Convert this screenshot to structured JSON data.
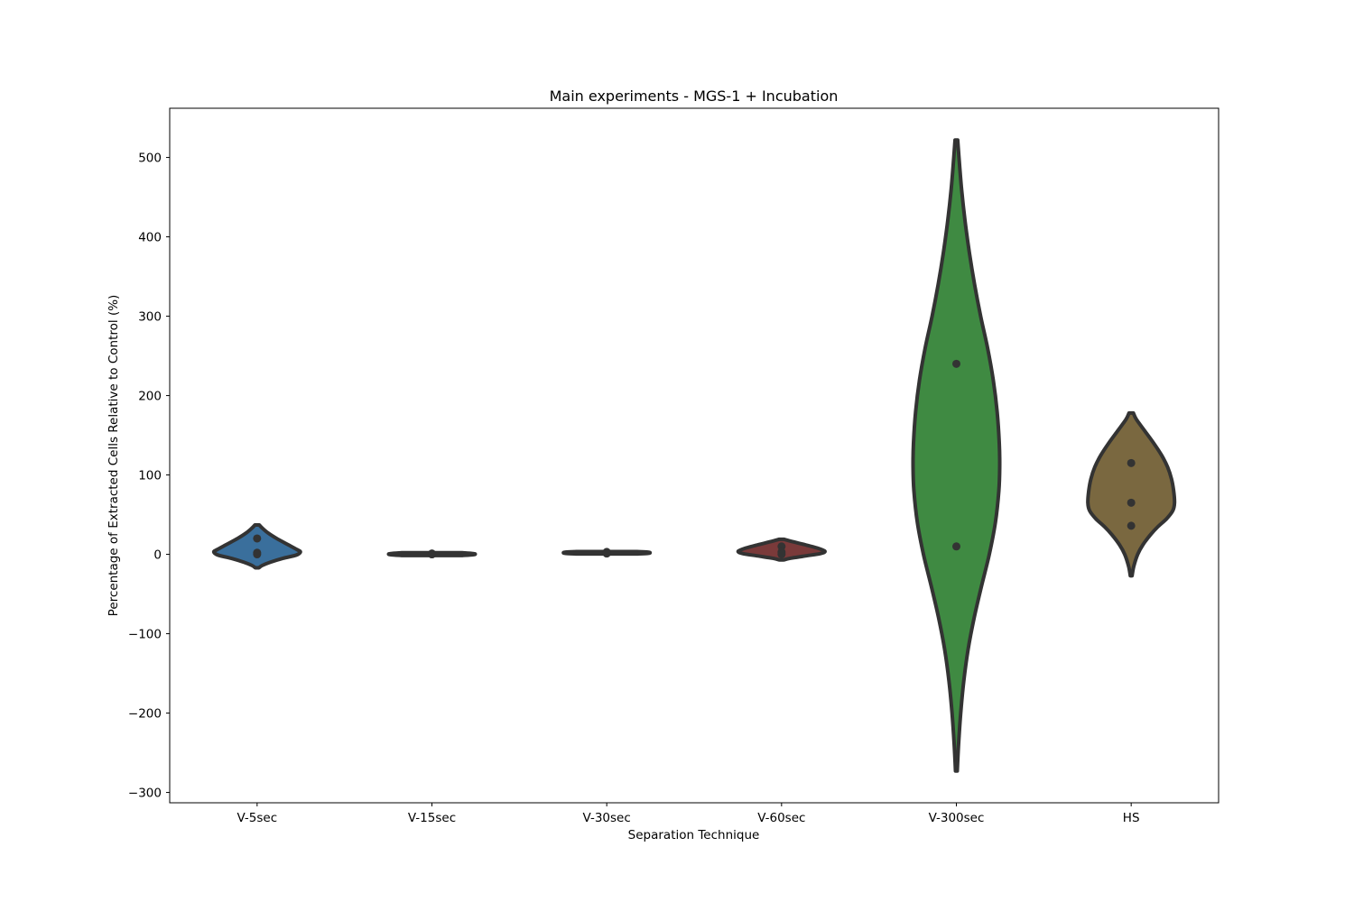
{
  "chart_data": {
    "type": "violin",
    "title": "Main experiments - MGS-1 + Incubation",
    "xlabel": "Separation Technique",
    "ylabel": "Percentage of Extracted Cells Relative to Control (%)",
    "ylim": [
      -313,
      562
    ],
    "yticks": [
      -300,
      -200,
      -100,
      0,
      100,
      200,
      300,
      400,
      500
    ],
    "ytick_labels": [
      "−300",
      "−200",
      "−100",
      "0",
      "100",
      "200",
      "300",
      "400",
      "500"
    ],
    "grid": false,
    "legend": "none",
    "categories": [
      "V-5sec",
      "V-15sec",
      "V-30sec",
      "V-60sec",
      "V-300sec",
      "HS"
    ],
    "series": [
      {
        "category": "V-5sec",
        "color": "#3a6f9c",
        "points": [
          20,
          2,
          0
        ],
        "violin_range": [
          -17,
          37
        ],
        "density_profile": [
          [
            37,
            0.05
          ],
          [
            33,
            0.12
          ],
          [
            27,
            0.25
          ],
          [
            20,
            0.45
          ],
          [
            12,
            0.72
          ],
          [
            6,
            0.92
          ],
          [
            3,
            1.0
          ],
          [
            -1,
            0.9
          ],
          [
            -5,
            0.6
          ],
          [
            -10,
            0.3
          ],
          [
            -14,
            0.12
          ],
          [
            -17,
            0.04
          ]
        ]
      },
      {
        "category": "V-15sec",
        "color": "#3a6f9c",
        "points": [
          0,
          1,
          0
        ],
        "violin_range": [
          -1.5,
          2
        ],
        "density_profile": [
          [
            2,
            0.7
          ],
          [
            1,
            0.95
          ],
          [
            0.3,
            1.0
          ],
          [
            -0.5,
            0.95
          ],
          [
            -1.5,
            0.7
          ]
        ]
      },
      {
        "category": "V-30sec",
        "color": "#9a6c2e",
        "points": [
          3,
          1,
          2
        ],
        "violin_range": [
          0.5,
          3.5
        ],
        "density_profile": [
          [
            3.5,
            0.7
          ],
          [
            2.8,
            0.95
          ],
          [
            2,
            1.0
          ],
          [
            1.2,
            0.95
          ],
          [
            0.5,
            0.7
          ]
        ]
      },
      {
        "category": "V-60sec",
        "color": "#7a3a3a",
        "points": [
          10,
          3,
          0
        ],
        "violin_range": [
          -7,
          19
        ],
        "density_profile": [
          [
            19,
            0.05
          ],
          [
            16,
            0.25
          ],
          [
            12,
            0.55
          ],
          [
            8,
            0.82
          ],
          [
            4,
            1.0
          ],
          [
            1,
            0.9
          ],
          [
            -2,
            0.55
          ],
          [
            -5,
            0.2
          ],
          [
            -7,
            0.05
          ]
        ]
      },
      {
        "category": "V-300sec",
        "color": "#3f8a42",
        "points": [
          240,
          10
        ],
        "violin_range": [
          -273,
          522
        ],
        "density_profile": [
          [
            522,
            0.03
          ],
          [
            500,
            0.06
          ],
          [
            460,
            0.12
          ],
          [
            420,
            0.2
          ],
          [
            380,
            0.3
          ],
          [
            340,
            0.42
          ],
          [
            300,
            0.56
          ],
          [
            260,
            0.72
          ],
          [
            220,
            0.85
          ],
          [
            180,
            0.94
          ],
          [
            140,
            0.99
          ],
          [
            110,
            1.0
          ],
          [
            80,
            0.98
          ],
          [
            40,
            0.9
          ],
          [
            0,
            0.76
          ],
          [
            -40,
            0.58
          ],
          [
            -80,
            0.41
          ],
          [
            -120,
            0.27
          ],
          [
            -160,
            0.17
          ],
          [
            -200,
            0.1
          ],
          [
            -240,
            0.05
          ],
          [
            -273,
            0.02
          ]
        ]
      },
      {
        "category": "HS",
        "color": "#7a6840",
        "points": [
          115,
          65,
          36
        ],
        "violin_range": [
          -27,
          178
        ],
        "density_profile": [
          [
            178,
            0.05
          ],
          [
            170,
            0.12
          ],
          [
            155,
            0.32
          ],
          [
            140,
            0.52
          ],
          [
            125,
            0.7
          ],
          [
            110,
            0.84
          ],
          [
            95,
            0.93
          ],
          [
            80,
            0.98
          ],
          [
            65,
            1.0
          ],
          [
            55,
            0.96
          ],
          [
            45,
            0.82
          ],
          [
            35,
            0.62
          ],
          [
            25,
            0.45
          ],
          [
            12,
            0.27
          ],
          [
            0,
            0.15
          ],
          [
            -15,
            0.06
          ],
          [
            -27,
            0.02
          ]
        ]
      }
    ]
  }
}
